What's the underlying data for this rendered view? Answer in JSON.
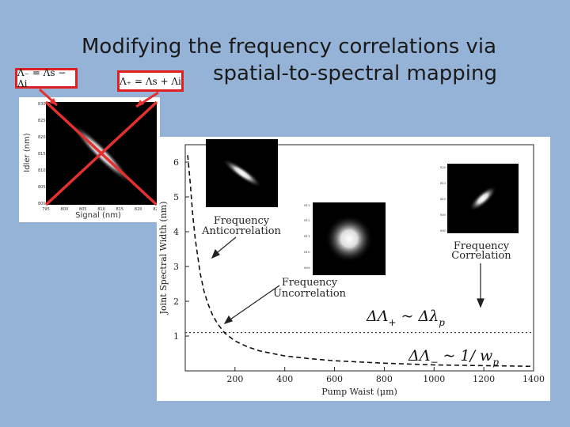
{
  "slide": {
    "title_line1": "Modifying the frequency correlations via",
    "title_line2": "spatial-to-spectral mapping"
  },
  "formulas": {
    "minus": "Λ₋ = Λs − Λi",
    "plus": "Λ₊ = Λs + Λi"
  },
  "inset": {
    "xlabel": "Signal (nm)",
    "ylabel": "Idler (nm)",
    "xticks": [
      "795",
      "800",
      "805",
      "810",
      "815",
      "820",
      "825"
    ]
  },
  "annotations": {
    "anticorrelation_l1": "Frequency",
    "anticorrelation_l2": "Anticorrelation",
    "uncorrelation_l1": "Frequency",
    "uncorrelation_l2": "Uncorrelation",
    "correlation_l1": "Frequency",
    "correlation_l2": "Correlation",
    "eq_plus_a": "ΔΛ",
    "eq_plus_b": "+",
    "eq_plus_c": " ~ Δλ",
    "eq_plus_d": "p",
    "eq_minus_a": "ΔΛ",
    "eq_minus_b": "−",
    "eq_minus_c": " ~ 1/ w",
    "eq_minus_d": "p"
  },
  "chart_data": {
    "type": "line",
    "title": "",
    "xlabel": "Pump Waist (μm)",
    "ylabel": "Joint Spectral Width (nm)",
    "xlim": [
      0,
      1400
    ],
    "ylim": [
      0,
      6.5
    ],
    "xticks": [
      200,
      400,
      600,
      800,
      1000,
      1200,
      1400
    ],
    "yticks": [
      1,
      2,
      3,
      4,
      5,
      6
    ],
    "series": [
      {
        "style": "dashed",
        "x": [
          10,
          20,
          30,
          40,
          50,
          60,
          75,
          90,
          110,
          130,
          160,
          200,
          250,
          300,
          400,
          500,
          600,
          800,
          1000,
          1200,
          1400
        ],
        "y": [
          6.2,
          5.4,
          4.5,
          3.8,
          3.3,
          2.8,
          2.3,
          1.95,
          1.6,
          1.35,
          1.08,
          0.86,
          0.69,
          0.57,
          0.43,
          0.35,
          0.29,
          0.22,
          0.17,
          0.15,
          0.13
        ]
      },
      {
        "style": "dotted",
        "x": [
          0,
          1400
        ],
        "y": [
          1.1,
          1.1
        ]
      }
    ]
  }
}
